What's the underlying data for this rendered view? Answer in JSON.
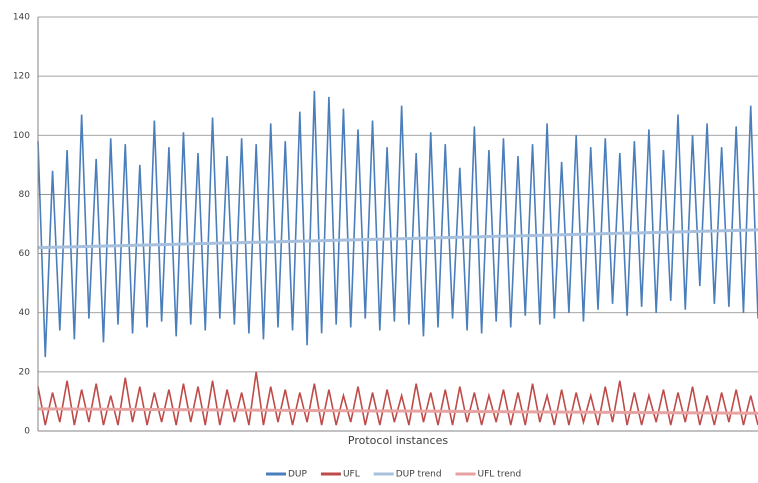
{
  "chart_data": {
    "type": "line",
    "x_label": "Protocol instances",
    "ylim": [
      0,
      140
    ],
    "yticks": [
      0,
      20,
      40,
      60,
      80,
      100,
      120,
      140
    ],
    "grid": true,
    "legend": "bottom",
    "series": [
      {
        "name": "DUP",
        "color": "#4a7ebb",
        "values": [
          98,
          25,
          88,
          34,
          95,
          31,
          107,
          38,
          92,
          30,
          99,
          36,
          97,
          33,
          90,
          35,
          105,
          37,
          96,
          32,
          101,
          36,
          94,
          34,
          106,
          38,
          93,
          36,
          99,
          33,
          97,
          31,
          104,
          35,
          98,
          34,
          108,
          29,
          115,
          33,
          113,
          36,
          109,
          35,
          102,
          38,
          105,
          34,
          96,
          37,
          110,
          36,
          94,
          32,
          101,
          35,
          97,
          38,
          89,
          34,
          103,
          33,
          95,
          37,
          99,
          35,
          93,
          39,
          97,
          36,
          104,
          38,
          91,
          40,
          100,
          37,
          96,
          41,
          99,
          43,
          94,
          39,
          98,
          42,
          102,
          40,
          95,
          44,
          107,
          41,
          100,
          49,
          104,
          43,
          96,
          42,
          103,
          40,
          110,
          38
        ]
      },
      {
        "name": "UFL",
        "color": "#be4b48",
        "values": [
          15,
          2,
          13,
          3,
          17,
          2,
          14,
          3,
          16,
          2,
          12,
          2,
          18,
          3,
          15,
          2,
          13,
          3,
          14,
          2,
          16,
          3,
          15,
          2,
          17,
          2,
          14,
          3,
          13,
          2,
          20,
          2,
          15,
          3,
          14,
          2,
          13,
          3,
          16,
          2,
          14,
          2,
          12,
          3,
          15,
          2,
          13,
          2,
          14,
          3,
          12,
          2,
          16,
          3,
          13,
          2,
          14,
          2,
          15,
          3,
          13,
          2,
          12,
          3,
          14,
          2,
          13,
          2,
          16,
          3,
          12,
          2,
          14,
          2,
          13,
          3,
          12,
          2,
          15,
          3,
          17,
          2,
          13,
          2,
          12,
          3,
          14,
          2,
          13,
          3,
          15,
          2,
          12,
          2,
          13,
          3,
          14,
          2,
          12,
          2
        ]
      },
      {
        "name": "DUP trend",
        "color": "#a7c0de",
        "values": [
          62,
          68
        ]
      },
      {
        "name": "UFL trend",
        "color": "#e6a3a1",
        "values": [
          7.5,
          6
        ]
      }
    ]
  }
}
